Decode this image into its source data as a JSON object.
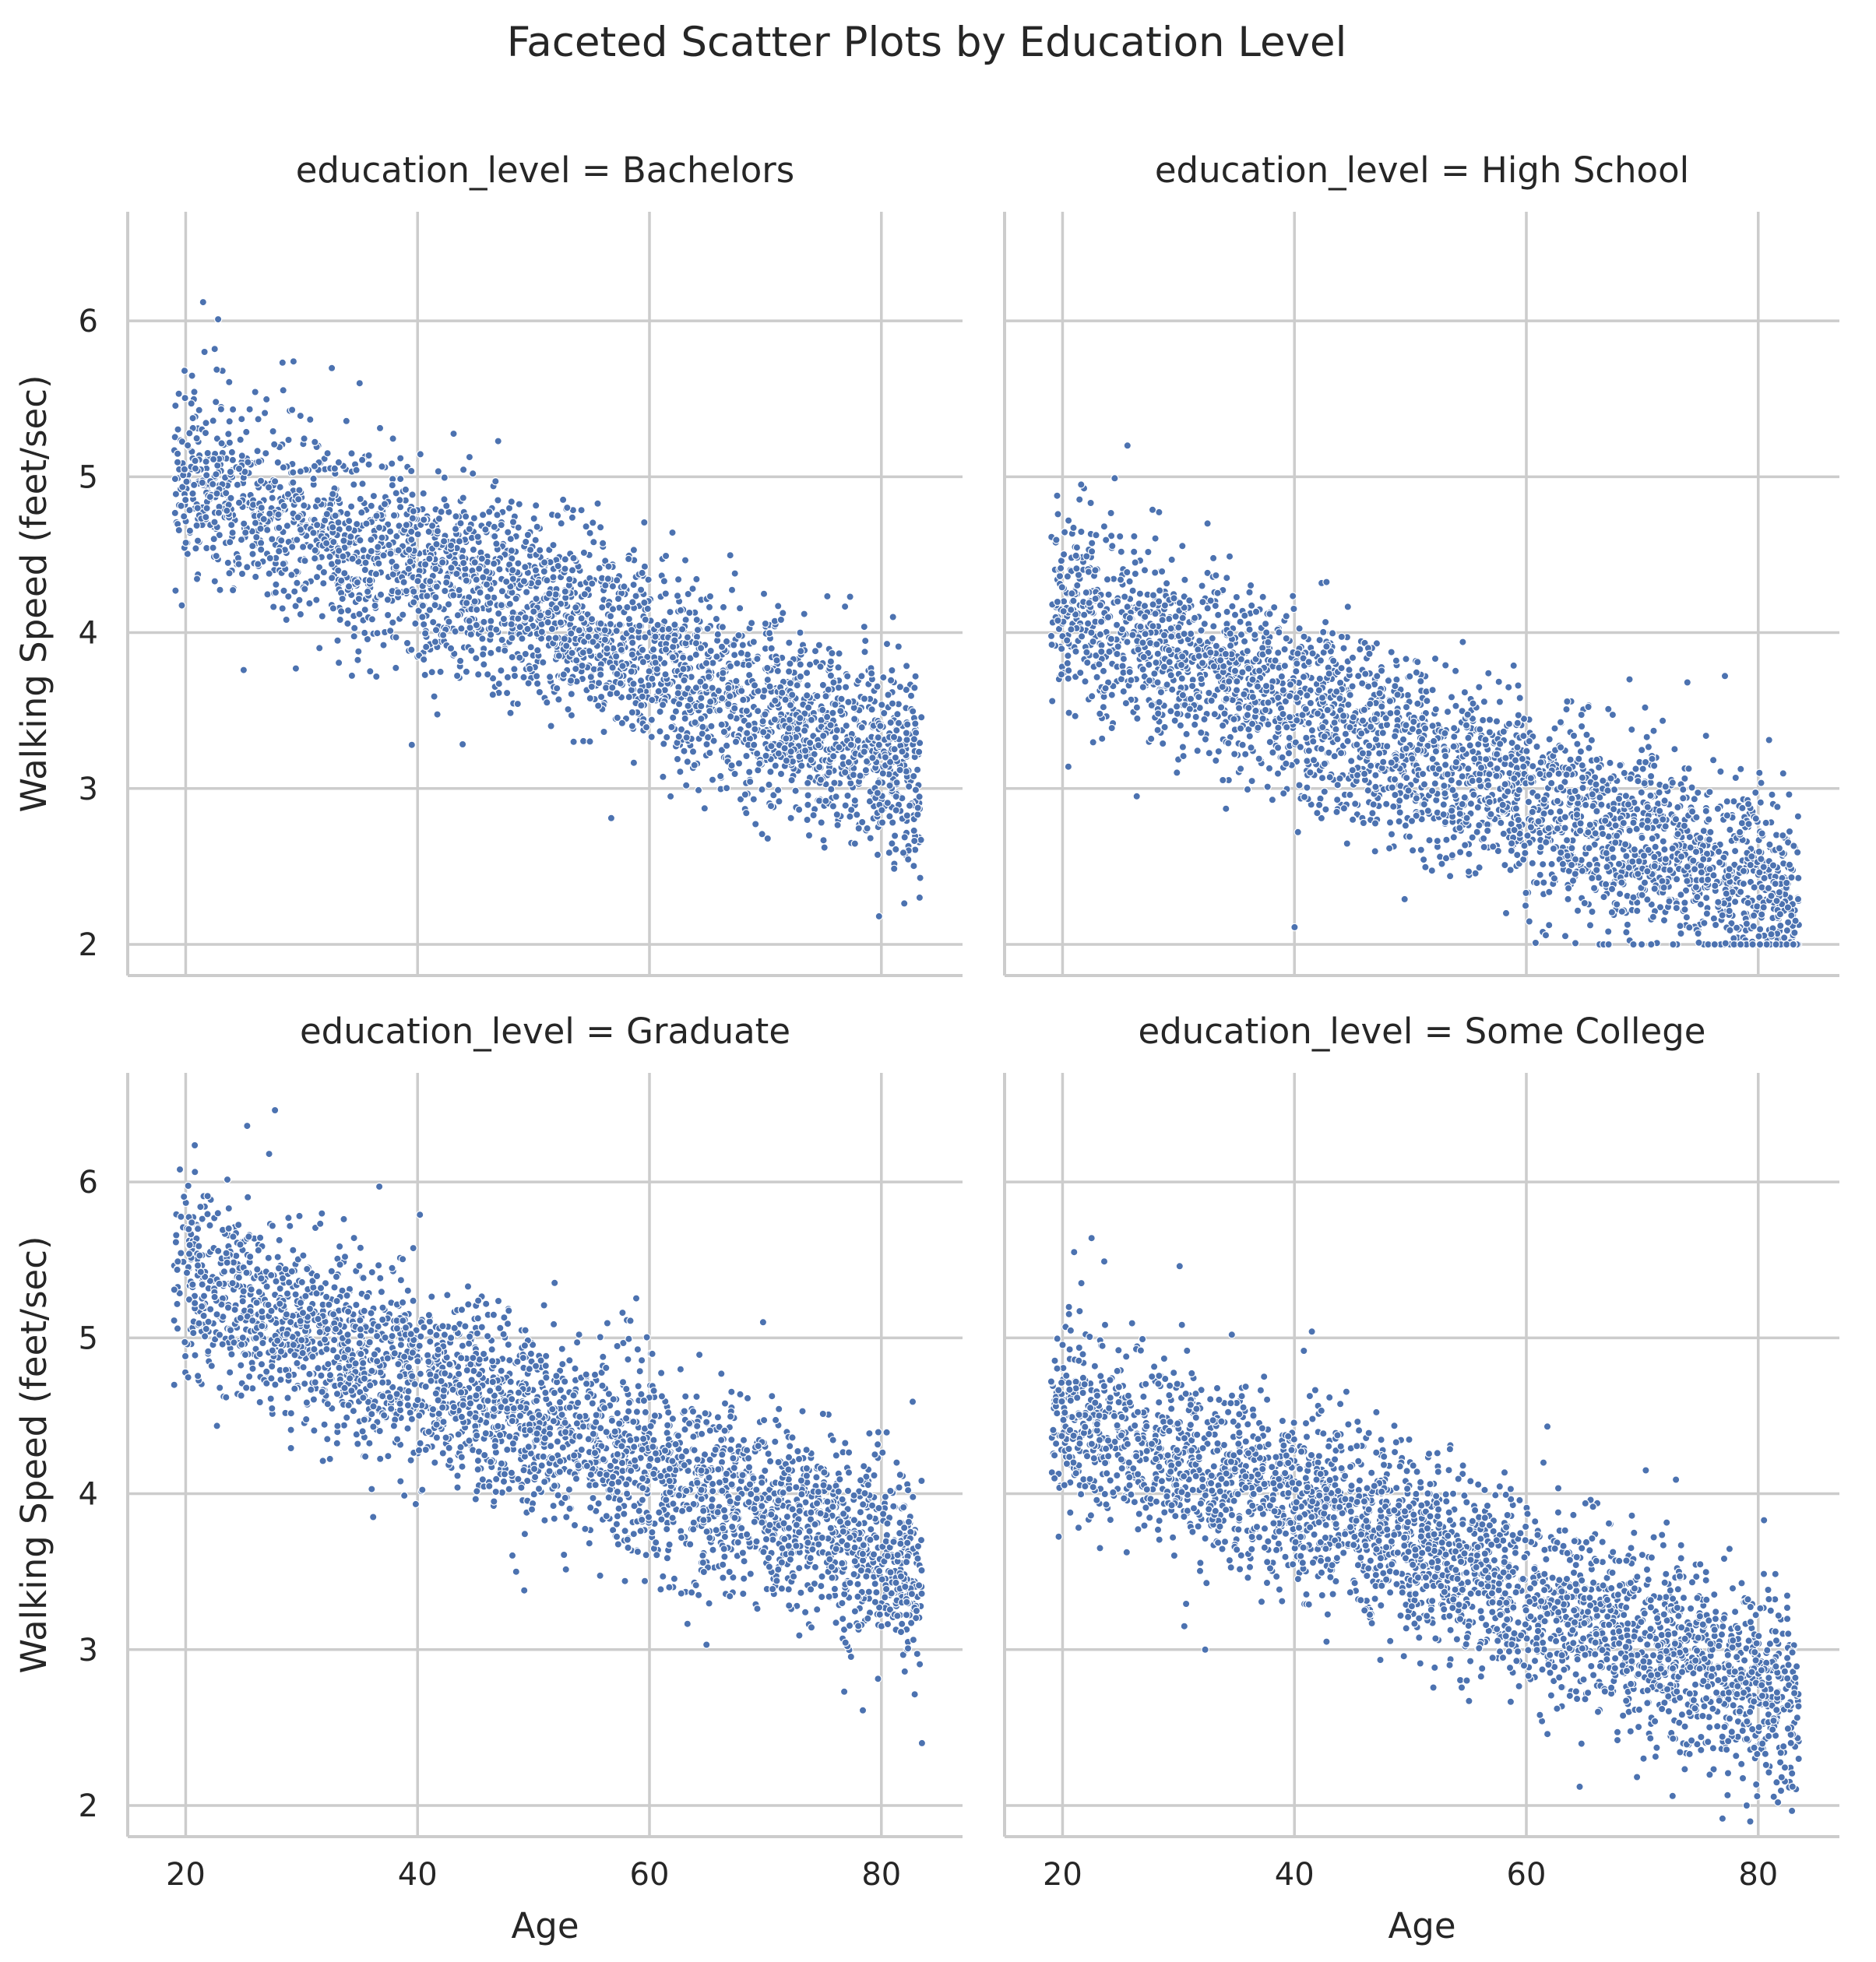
{
  "chart_data": {
    "type": "scatter",
    "title": "Faceted Scatter Plots by Education Level",
    "xlabel": "Age",
    "ylabel": "Walking Speed (feet/sec)",
    "xlim": [
      15,
      87
    ],
    "ylim": [
      1.8,
      6.7
    ],
    "x_ticks": [
      20,
      40,
      60,
      80
    ],
    "y_ticks": [
      2,
      3,
      4,
      5,
      6
    ],
    "grid": true,
    "marker_color": "#4c72b0",
    "points_per_facet_approx": 3000,
    "facets": [
      {
        "title": "education_level = Bachelors",
        "trend": [
          [
            20,
            4.95
          ],
          [
            30,
            4.7
          ],
          [
            40,
            4.4
          ],
          [
            50,
            4.15
          ],
          [
            60,
            3.85
          ],
          [
            70,
            3.5
          ],
          [
            80,
            3.2
          ],
          [
            83,
            3.05
          ]
        ],
        "spread_sd": 0.3,
        "clip_min": null,
        "points": [
          [
            21.5,
            6.12
          ],
          [
            22.8,
            6.01
          ],
          [
            22.5,
            5.82
          ],
          [
            29.3,
            5.74
          ],
          [
            35,
            5.6
          ],
          [
            19.9,
            5.68
          ],
          [
            39.5,
            3.28
          ],
          [
            81,
            4.1
          ],
          [
            79.8,
            2.18
          ],
          [
            83.3,
            2.3
          ],
          [
            56.7,
            2.81
          ],
          [
            25,
            3.76
          ],
          [
            29.5,
            3.77
          ],
          [
            77.3,
            4.23
          ],
          [
            61.4,
            4.25
          ]
        ]
      },
      {
        "title": "education_level = High School",
        "trend": [
          [
            20,
            4.15
          ],
          [
            30,
            3.85
          ],
          [
            40,
            3.55
          ],
          [
            50,
            3.25
          ],
          [
            60,
            2.95
          ],
          [
            70,
            2.65
          ],
          [
            80,
            2.35
          ],
          [
            83,
            2.25
          ]
        ],
        "spread_sd": 0.3,
        "clip_min": 2.0,
        "points": [
          [
            25.6,
            5.2
          ],
          [
            24.5,
            4.99
          ],
          [
            21.6,
            4.95
          ],
          [
            19.6,
            4.76
          ],
          [
            32.5,
            4.7
          ],
          [
            40.3,
            2.72
          ],
          [
            20.5,
            3.14
          ],
          [
            26.4,
            2.95
          ],
          [
            49.5,
            2.29
          ],
          [
            60.8,
            2.01
          ],
          [
            80.1,
            3.1
          ],
          [
            68.9,
            3.7
          ]
        ]
      },
      {
        "title": "education_level = Graduate",
        "trend": [
          [
            20,
            5.45
          ],
          [
            30,
            5.05
          ],
          [
            40,
            4.75
          ],
          [
            50,
            4.45
          ],
          [
            60,
            4.15
          ],
          [
            70,
            3.9
          ],
          [
            80,
            3.6
          ],
          [
            83,
            3.45
          ]
        ],
        "spread_sd": 0.3,
        "clip_min": null,
        "points": [
          [
            27.7,
            6.46
          ],
          [
            25.3,
            6.36
          ],
          [
            27.2,
            6.18
          ],
          [
            19.5,
            6.08
          ],
          [
            36.7,
            5.97
          ],
          [
            40.2,
            5.79
          ],
          [
            83.5,
            2.4
          ],
          [
            78.4,
            2.61
          ],
          [
            76.8,
            2.73
          ],
          [
            49.2,
            3.38
          ],
          [
            48.5,
            3.5
          ],
          [
            69.8,
            5.1
          ],
          [
            82.7,
            4.59
          ]
        ]
      },
      {
        "title": "education_level = Some College",
        "trend": [
          [
            20,
            4.5
          ],
          [
            30,
            4.25
          ],
          [
            40,
            3.95
          ],
          [
            50,
            3.65
          ],
          [
            60,
            3.35
          ],
          [
            70,
            3.05
          ],
          [
            80,
            2.75
          ],
          [
            83,
            2.65
          ]
        ],
        "spread_sd": 0.3,
        "clip_min": null,
        "points": [
          [
            22.5,
            5.64
          ],
          [
            21,
            5.55
          ],
          [
            23.6,
            5.49
          ],
          [
            30.1,
            5.46
          ],
          [
            34.6,
            5.02
          ],
          [
            41.5,
            5.04
          ],
          [
            32.3,
            3.0
          ],
          [
            30.5,
            3.15
          ],
          [
            79,
            2.0
          ],
          [
            81.7,
            2.02
          ],
          [
            64.6,
            2.12
          ],
          [
            80.5,
            3.83
          ],
          [
            72.9,
            4.09
          ],
          [
            70.3,
            4.15
          ]
        ]
      }
    ]
  }
}
